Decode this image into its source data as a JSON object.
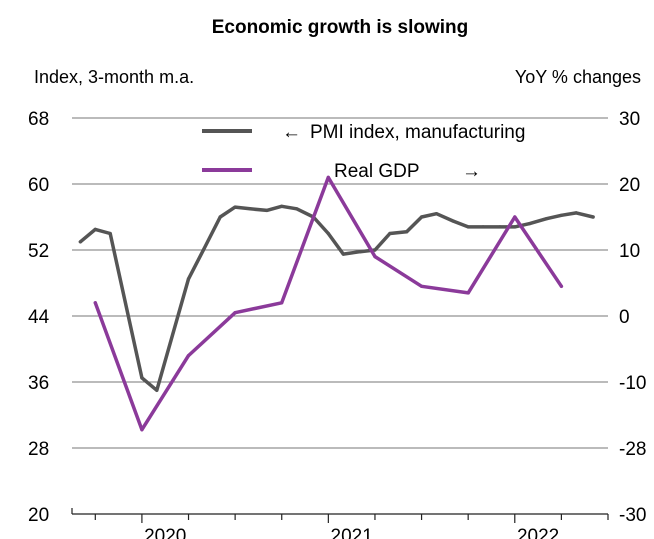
{
  "chart_data": {
    "type": "line",
    "title": "Economic growth is slowing",
    "left_axis_label": "Index, 3-month m.a.",
    "right_axis_label": "YoY % changes",
    "y_left": {
      "ticks": [
        20,
        28,
        36,
        44,
        52,
        60,
        68
      ],
      "ylim": [
        20,
        68
      ]
    },
    "y_right": {
      "ticks": [
        "-30",
        "-28",
        "-10",
        "0",
        "10",
        "20",
        "30"
      ]
    },
    "x_ticks": [
      "2020",
      "2021",
      "2022"
    ],
    "xlim": [
      2019.625,
      2022.5
    ],
    "grid": "horizontal",
    "legend": [
      {
        "label": "PMI index, manufacturing",
        "arrow": "←",
        "axis": "left",
        "color": "#555555"
      },
      {
        "label": "Real GDP",
        "arrow": "→",
        "axis": "right",
        "color": "#8b3a9a"
      }
    ],
    "series": [
      {
        "name": "PMI index, manufacturing",
        "axis": "left",
        "color": "#555555",
        "x": [
          2019.67,
          2019.75,
          2019.83,
          2020.0,
          2020.08,
          2020.25,
          2020.33,
          2020.42,
          2020.5,
          2020.58,
          2020.67,
          2020.75,
          2020.83,
          2020.92,
          2021.0,
          2021.08,
          2021.17,
          2021.25,
          2021.33,
          2021.42,
          2021.5,
          2021.58,
          2021.67,
          2021.75,
          2021.83,
          2021.92,
          2022.0,
          2022.08,
          2022.17,
          2022.25,
          2022.33,
          2022.42
        ],
        "values": [
          53.0,
          54.5,
          54.0,
          36.5,
          35.0,
          48.5,
          52.0,
          56.0,
          57.2,
          57.0,
          56.8,
          57.3,
          57.0,
          56.0,
          54.0,
          51.5,
          51.8,
          52.0,
          54.0,
          54.2,
          56.0,
          56.4,
          55.5,
          54.8,
          54.8,
          54.8,
          54.8,
          55.2,
          55.8,
          56.2,
          56.5,
          56.0
        ]
      },
      {
        "name": "Real GDP",
        "axis": "right",
        "color": "#8b3a9a",
        "x": [
          2019.75,
          2020.0,
          2020.25,
          2020.5,
          2020.75,
          2021.0,
          2021.25,
          2021.5,
          2021.75,
          2022.0,
          2022.25
        ],
        "values": [
          2,
          -23,
          -6,
          0.5,
          2,
          21,
          9,
          4.5,
          3.5,
          15,
          4.5
        ]
      }
    ]
  }
}
